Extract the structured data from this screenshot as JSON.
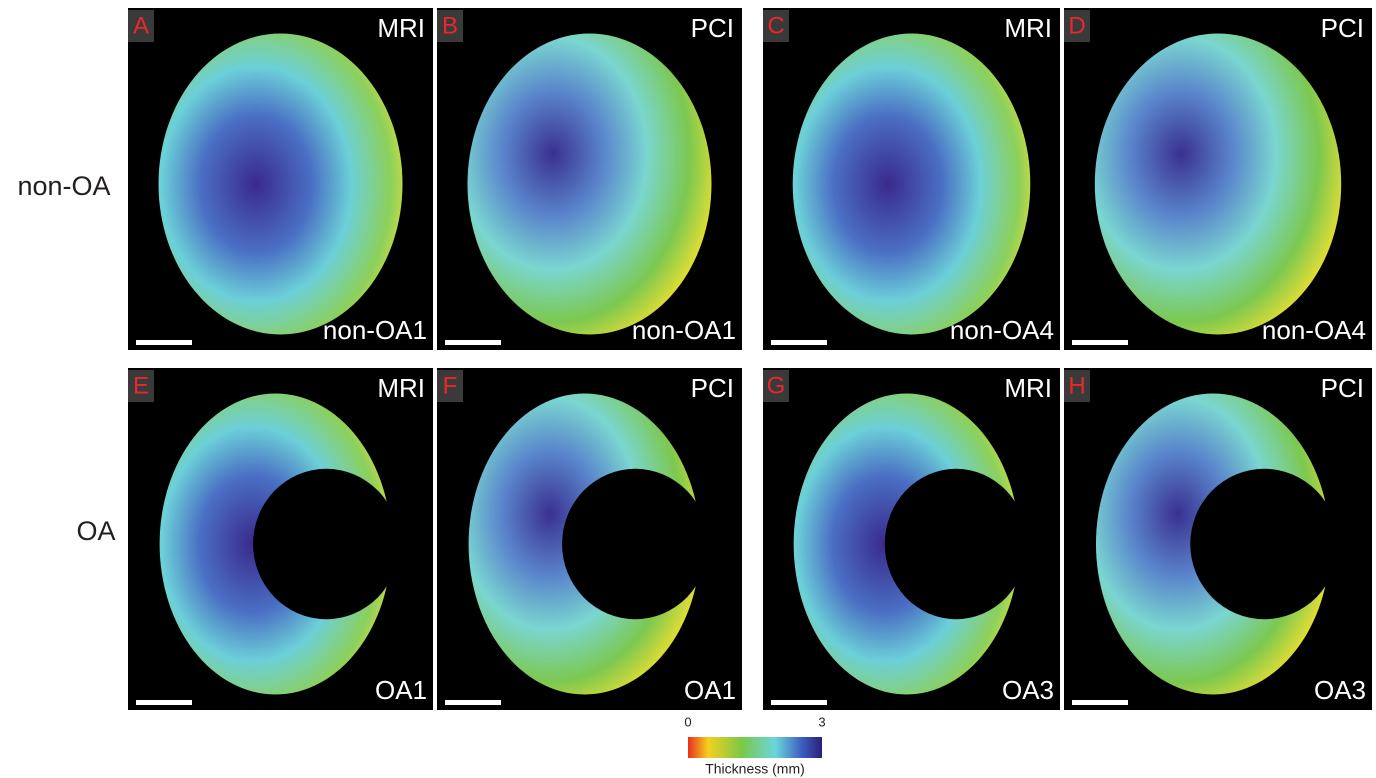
{
  "figure": {
    "row_labels": [
      "non-OA",
      "OA"
    ],
    "panels": [
      {
        "letter": "A",
        "modality": "MRI",
        "sample": "non-OA1"
      },
      {
        "letter": "B",
        "modality": "PCI",
        "sample": "non-OA1"
      },
      {
        "letter": "C",
        "modality": "MRI",
        "sample": "non-OA4"
      },
      {
        "letter": "D",
        "modality": "PCI",
        "sample": "non-OA4"
      },
      {
        "letter": "E",
        "modality": "MRI",
        "sample": "OA1"
      },
      {
        "letter": "F",
        "modality": "PCI",
        "sample": "OA1"
      },
      {
        "letter": "G",
        "modality": "MRI",
        "sample": "OA3"
      },
      {
        "letter": "H",
        "modality": "PCI",
        "sample": "OA3"
      }
    ],
    "colorbar": {
      "min": 0,
      "max": 3,
      "label": "Thickness (mm)"
    }
  }
}
